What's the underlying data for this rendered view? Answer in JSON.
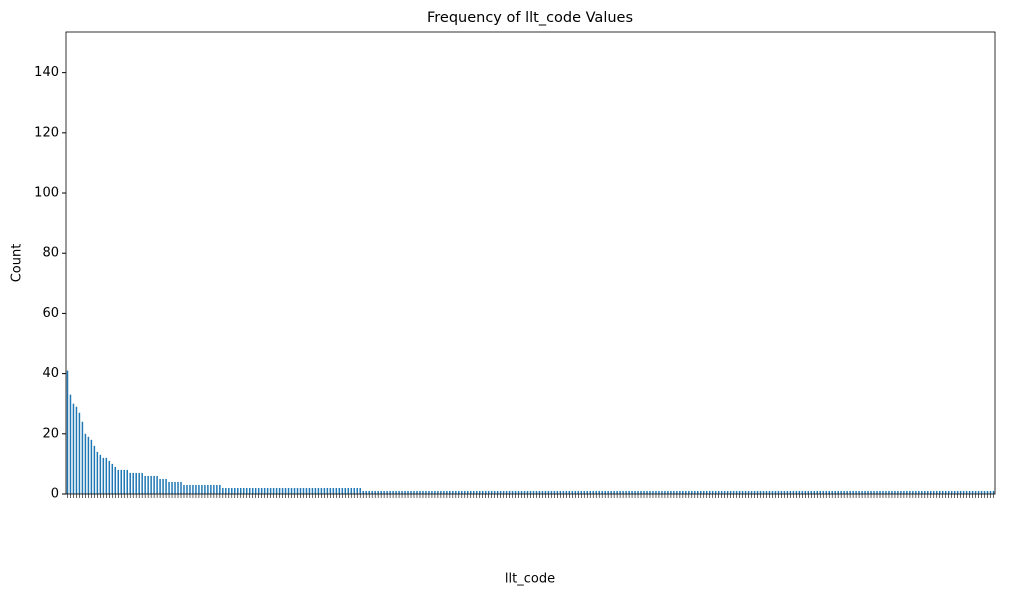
{
  "chart_data": {
    "type": "bar",
    "title": "Frequency of llt_code Values",
    "x_label": "llt_code",
    "y_label": "Count",
    "color": "#1f77b4",
    "ylim": [
      0,
      153.5
    ],
    "yticks": [
      0,
      20,
      40,
      60,
      80,
      100,
      120,
      140
    ],
    "values": [
      41,
      33,
      30,
      29,
      27,
      24,
      20,
      19,
      18,
      16,
      14,
      13,
      12,
      12,
      11,
      10,
      9,
      8,
      8,
      8,
      8,
      7,
      7,
      7,
      7,
      7,
      6,
      6,
      6,
      6,
      6,
      5,
      5,
      5,
      4,
      4,
      4,
      4,
      4,
      3,
      3,
      3,
      3,
      3,
      3,
      3,
      3,
      3,
      3,
      3,
      3,
      3,
      2,
      2,
      2,
      2,
      2,
      2,
      2,
      2,
      2,
      2,
      2,
      2,
      2,
      2,
      2,
      2,
      2,
      2,
      2,
      2,
      2,
      2,
      2,
      2,
      2,
      2,
      2,
      2,
      2,
      2,
      2,
      2,
      2,
      2,
      2,
      2,
      2,
      2,
      2,
      2,
      2,
      2,
      2,
      2,
      2,
      2,
      2,
      1,
      1,
      1,
      1,
      1,
      1,
      1,
      1,
      1,
      1,
      1,
      1,
      1,
      1,
      1,
      1,
      1,
      1,
      1,
      1,
      1,
      1,
      1,
      1,
      1,
      1,
      1,
      1,
      1,
      1,
      1,
      1,
      1,
      1,
      1,
      1,
      1,
      1,
      1,
      1,
      1,
      1,
      1,
      1,
      1,
      1,
      1,
      1,
      1,
      1,
      1,
      1,
      1,
      1,
      1,
      1,
      1,
      1,
      1,
      1,
      1,
      1,
      1,
      1,
      1,
      1,
      1,
      1,
      1,
      1,
      1,
      1,
      1,
      1,
      1,
      1,
      1,
      1,
      1,
      1,
      1,
      1,
      1,
      1,
      1,
      1,
      1,
      1,
      1,
      1,
      1,
      1,
      1,
      1,
      1,
      1,
      1,
      1,
      1,
      1,
      1,
      1,
      1,
      1,
      1,
      1,
      1,
      1,
      1,
      1,
      1,
      1,
      1,
      1,
      1,
      1,
      1,
      1,
      1,
      1,
      1,
      1,
      1,
      1,
      1,
      1,
      1,
      1,
      1,
      1,
      1,
      1,
      1,
      1,
      1,
      1,
      1,
      1,
      1,
      1,
      1,
      1,
      1,
      1,
      1,
      1,
      1,
      1,
      1,
      1,
      1,
      1,
      1,
      1,
      1,
      1,
      1,
      1,
      1,
      1,
      1,
      1,
      1,
      1,
      1,
      1,
      1,
      1,
      1,
      1,
      1,
      1,
      1,
      1,
      1,
      1,
      1,
      1,
      1,
      1,
      1,
      1,
      1,
      1,
      1,
      1,
      1,
      1,
      1,
      1,
      1,
      1,
      1,
      1,
      1,
      1,
      1,
      1,
      1,
      1,
      1,
      1,
      1,
      1,
      1,
      1,
      1,
      1,
      1,
      1,
      1,
      1
    ],
    "categories": [
      null,
      null,
      null,
      null,
      null,
      null,
      null,
      null,
      null,
      null,
      null,
      null,
      null,
      null,
      null,
      null,
      null,
      null,
      null,
      null,
      null,
      null,
      null,
      null,
      null,
      null,
      null,
      null,
      null,
      null,
      null,
      null,
      null,
      null,
      null,
      null,
      null,
      null,
      null,
      null,
      null,
      null,
      null,
      null,
      null,
      null,
      null,
      null,
      null,
      null,
      null,
      null,
      null,
      null,
      null,
      null,
      null,
      null,
      null,
      null,
      null,
      null,
      null,
      null,
      null,
      null,
      null,
      null,
      null,
      null,
      null,
      null,
      null,
      null,
      null,
      null,
      null,
      null,
      null,
      null,
      null,
      null,
      null,
      null,
      null,
      null,
      null,
      null,
      null,
      null,
      null,
      null,
      null,
      null,
      null,
      null,
      null,
      null,
      null,
      null,
      null,
      null,
      null,
      null,
      null,
      null,
      null,
      null,
      null,
      null,
      null,
      null,
      null,
      null,
      null,
      null,
      null,
      null,
      null,
      null,
      null,
      null,
      null,
      null,
      null,
      null,
      null,
      null,
      null,
      null,
      null,
      null,
      null,
      null,
      null,
      null,
      null,
      null,
      null,
      null,
      null,
      null,
      null,
      null,
      null,
      null,
      null,
      null,
      null,
      null,
      null,
      null,
      null,
      null,
      null,
      null,
      null,
      null,
      null,
      null,
      null,
      null,
      null,
      null,
      null,
      null,
      null,
      null,
      null,
      null,
      null,
      null,
      null,
      null,
      null,
      null,
      null,
      null,
      null,
      null,
      null,
      null,
      null,
      null,
      null,
      null,
      null,
      null,
      null,
      null,
      null,
      null,
      null,
      null,
      null,
      null,
      null,
      null,
      null,
      null,
      null,
      null,
      null,
      null,
      null,
      null,
      null,
      null,
      null,
      null,
      null,
      null,
      null,
      null,
      null,
      null,
      null,
      null,
      null,
      null,
      null,
      null,
      null,
      null,
      null,
      null,
      null,
      null,
      null,
      null,
      null,
      null,
      null,
      null,
      null,
      null,
      null,
      null,
      null,
      null,
      null,
      null,
      null,
      null,
      null,
      null,
      null,
      null,
      null,
      null,
      null,
      null,
      null,
      null,
      null,
      null,
      null,
      null,
      null,
      null,
      null,
      null,
      null,
      null,
      null,
      null,
      null,
      null,
      null,
      null,
      null,
      null,
      null,
      null,
      null,
      null,
      null,
      null,
      null,
      null,
      null,
      null,
      null,
      null,
      null,
      null,
      null,
      null,
      null,
      null,
      null,
      null,
      null,
      null,
      null,
      null,
      null,
      null,
      null,
      null,
      null,
      null,
      null,
      null,
      null,
      null,
      null,
      null,
      null,
      null,
      null
    ]
  }
}
